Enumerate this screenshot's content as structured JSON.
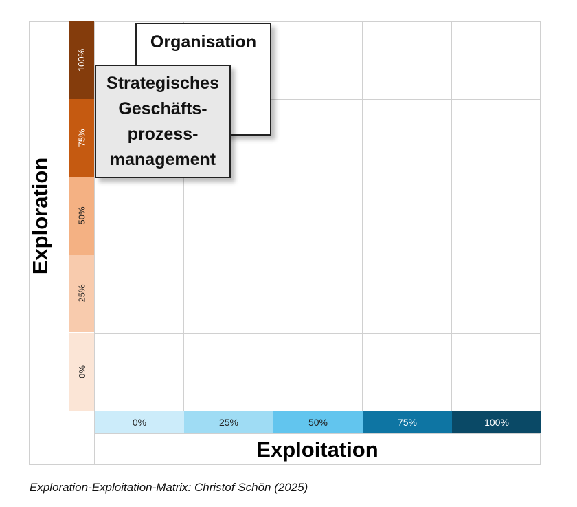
{
  "matrix": {
    "y_axis_title": "Exploration",
    "x_axis_title": "Exploitation",
    "y_levels": [
      {
        "label": "100%",
        "color": "#843c0c",
        "text_color": "#ffffff"
      },
      {
        "label": "75%",
        "color": "#c55a11",
        "text_color": "#ffffff"
      },
      {
        "label": "50%",
        "color": "#f4b183",
        "text_color": "#222222"
      },
      {
        "label": "25%",
        "color": "#f8cbad",
        "text_color": "#222222"
      },
      {
        "label": "0%",
        "color": "#fbe5d6",
        "text_color": "#222222"
      }
    ],
    "x_levels": [
      {
        "label": "0%",
        "color": "#ccecfa",
        "text_color": "#222222"
      },
      {
        "label": "25%",
        "color": "#9fdcf4",
        "text_color": "#222222"
      },
      {
        "label": "50%",
        "color": "#62c5ee",
        "text_color": "#222222"
      },
      {
        "label": "75%",
        "color": "#0e75a3",
        "text_color": "#ffffff"
      },
      {
        "label": "100%",
        "color": "#0a4966",
        "text_color": "#ffffff"
      }
    ],
    "boxes": {
      "organisation": "Organisation",
      "bpm": "Strategisches\nGeschäfts-\nprozess-\nmanagement"
    }
  },
  "caption": "Exploration-Exploitation-Matrix: Christof Schön (2025)"
}
